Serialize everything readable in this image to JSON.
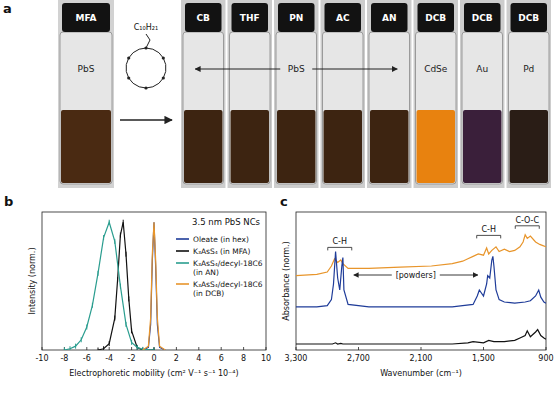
{
  "photo": {
    "panel_label": "a",
    "ligand_substituent": "C₁₀H₂₁",
    "group_label": "PbS",
    "left_vial": {
      "cap": "MFA",
      "label": "PbS",
      "color": "#4a2a12"
    },
    "vials": [
      {
        "cap": "CB",
        "color": "#3d2411"
      },
      {
        "cap": "THF",
        "color": "#3d2411"
      },
      {
        "cap": "PN",
        "color": "#3d2411"
      },
      {
        "cap": "AC",
        "color": "#3d2411"
      },
      {
        "cap": "AN",
        "color": "#3d2411"
      },
      {
        "cap": "DCB",
        "label": "CdSe",
        "color": "#e8820f"
      },
      {
        "cap": "DCB",
        "label": "Au",
        "color": "#3a1f3a"
      },
      {
        "cap": "DCB",
        "label": "Pd",
        "color": "#2a1d16"
      }
    ]
  },
  "chart_data": [
    {
      "panel_label": "b",
      "type": "line",
      "title": "3.5 nm PbS NCs",
      "xlabel": "Electrophoretic mobility (cm² V⁻¹ s⁻¹ 10⁻⁴)",
      "ylabel": "Intensity (norm.)",
      "xlim": [
        -10,
        10
      ],
      "xticks": [
        -10,
        -8,
        -6,
        -4,
        -2,
        0,
        2,
        4,
        6,
        8,
        10
      ],
      "ylim": [
        0,
        1.08
      ],
      "tick_labels": "x",
      "grid": false,
      "legend": "upper right",
      "series": [
        {
          "name": "Oleate (in hex)",
          "color": "#1f3c99",
          "x": [
            -1,
            -0.5,
            -0.3,
            -0.15,
            0,
            0.15,
            0.3,
            0.5,
            1
          ],
          "values": [
            0,
            0.02,
            0.2,
            0.7,
            1.0,
            0.65,
            0.2,
            0.02,
            0
          ]
        },
        {
          "name": "K₃AsS₄ (in MFA)",
          "color": "#111111",
          "marker": "tick",
          "x": [
            -5,
            -4.5,
            -4,
            -3.5,
            -3.25,
            -3,
            -2.75,
            -2.5,
            -2.25,
            -2,
            -1.5,
            -1,
            0
          ],
          "values": [
            0,
            0.01,
            0.05,
            0.25,
            0.55,
            0.9,
            1.0,
            0.75,
            0.4,
            0.15,
            0.02,
            0,
            0
          ]
        },
        {
          "name": "K₃AsS₄/decyl-18C6 (in AN)",
          "color": "#2a9d8f",
          "marker": "tick",
          "x": [
            -8,
            -7.5,
            -7,
            -6.5,
            -6,
            -5.5,
            -5,
            -4.5,
            -4,
            -3.5,
            -3,
            -2.5,
            -2,
            -1.5,
            -1,
            0
          ],
          "values": [
            0,
            0.01,
            0.03,
            0.08,
            0.18,
            0.35,
            0.6,
            0.88,
            1.0,
            0.85,
            0.5,
            0.2,
            0.06,
            0.02,
            0.005,
            0
          ]
        },
        {
          "name": "K₃AsS₄/decyl-18C6 (in DCB)",
          "color": "#e8952b",
          "x": [
            -1,
            -0.5,
            -0.3,
            -0.15,
            0,
            0.15,
            0.3,
            0.5,
            1
          ],
          "values": [
            0,
            0.03,
            0.25,
            0.75,
            1.0,
            0.7,
            0.25,
            0.03,
            0
          ]
        }
      ]
    },
    {
      "panel_label": "c",
      "type": "line",
      "xlabel": "Wavenumber (cm⁻¹)",
      "ylabel": "Absorbance (norm.)",
      "xlim": [
        3300,
        900
      ],
      "xticks": [
        {
          "value": 3300,
          "label": "3,300"
        },
        {
          "value": 2700,
          "label": "2,700"
        },
        {
          "value": 2100,
          "label": "2,100"
        },
        {
          "value": 1500,
          "label": "1,500"
        },
        900
      ],
      "ylim": [
        0,
        1.15
      ],
      "tick_labels": "x",
      "grid": false,
      "annotations": [
        {
          "text": "C-H",
          "x": 2880,
          "y": 0.88
        },
        {
          "text": "[powders]",
          "x": 2150,
          "y": 0.6
        },
        {
          "text": "C-H",
          "x": 1450,
          "y": 0.98
        },
        {
          "text": "C-O-C",
          "x": 1080,
          "y": 1.06
        }
      ],
      "series": [
        {
          "color": "#e8952b",
          "x": [
            3300,
            3100,
            3000,
            2960,
            2930,
            2900,
            2870,
            2850,
            2800,
            2600,
            2300,
            2000,
            1800,
            1700,
            1650,
            1600,
            1550,
            1500,
            1470,
            1450,
            1420,
            1380,
            1350,
            1300,
            1250,
            1200,
            1150,
            1120,
            1100,
            1080,
            1050,
            1000,
            960,
            930,
            900
          ],
          "values": [
            0.62,
            0.63,
            0.65,
            0.7,
            0.76,
            0.73,
            0.75,
            0.72,
            0.68,
            0.68,
            0.69,
            0.7,
            0.72,
            0.74,
            0.76,
            0.78,
            0.8,
            0.79,
            0.85,
            0.8,
            0.83,
            0.86,
            0.82,
            0.84,
            0.82,
            0.83,
            0.86,
            0.9,
            0.96,
            0.93,
            0.95,
            0.9,
            0.88,
            0.87,
            0.86
          ]
        },
        {
          "color": "#1f3c99",
          "x": [
            3300,
            3100,
            3000,
            2960,
            2940,
            2920,
            2900,
            2880,
            2860,
            2850,
            2840,
            2800,
            2600,
            2300,
            2000,
            1800,
            1700,
            1600,
            1560,
            1540,
            1500,
            1470,
            1460,
            1440,
            1420,
            1410,
            1400,
            1380,
            1350,
            1300,
            1200,
            1100,
            1050,
            1000,
            970,
            950,
            920,
            900
          ],
          "values": [
            0.36,
            0.36,
            0.37,
            0.42,
            0.55,
            0.82,
            0.6,
            0.5,
            0.7,
            0.77,
            0.5,
            0.38,
            0.36,
            0.36,
            0.36,
            0.36,
            0.37,
            0.38,
            0.45,
            0.5,
            0.45,
            0.55,
            0.62,
            0.6,
            0.75,
            0.78,
            0.7,
            0.5,
            0.42,
            0.4,
            0.39,
            0.4,
            0.41,
            0.45,
            0.5,
            0.44,
            0.4,
            0.39
          ]
        },
        {
          "color": "#111111",
          "x": [
            3300,
            3100,
            2950,
            2920,
            2900,
            2870,
            2850,
            2800,
            2500,
            2200,
            2000,
            1800,
            1650,
            1600,
            1500,
            1450,
            1400,
            1300,
            1200,
            1150,
            1100,
            1080,
            1050,
            1000,
            980,
            950,
            920,
            900
          ],
          "values": [
            0.05,
            0.05,
            0.05,
            0.06,
            0.05,
            0.055,
            0.05,
            0.05,
            0.05,
            0.05,
            0.05,
            0.05,
            0.06,
            0.07,
            0.06,
            0.08,
            0.07,
            0.07,
            0.08,
            0.1,
            0.12,
            0.16,
            0.11,
            0.15,
            0.17,
            0.12,
            0.1,
            0.09
          ]
        }
      ]
    }
  ]
}
